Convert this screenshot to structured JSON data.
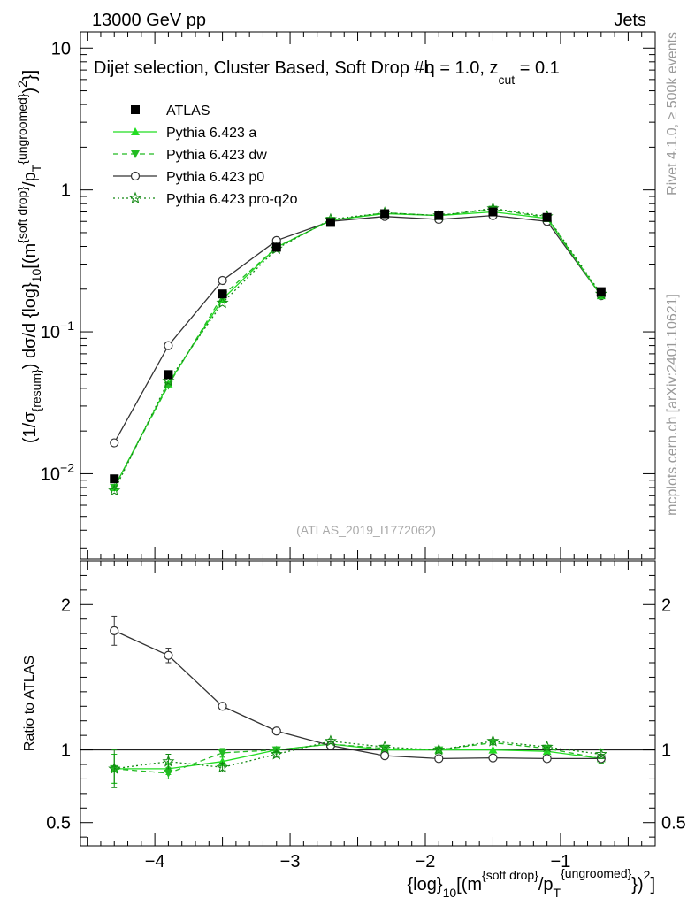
{
  "header": {
    "left": "13000 GeV pp",
    "right": "Jets",
    "side_rivet": "Rivet 4.1.0, ≥ 500k events",
    "side_mcplots": "mcplots.cern.ch [arXiv:2401.10621]",
    "analysis_id": "(ATLAS_2019_I1772062)"
  },
  "colors": {
    "atlas": "#000000",
    "a": "#22dd22",
    "dw": "#22bb22",
    "p0": "#333333",
    "proq2o": "#118811",
    "side_text": "#999999",
    "analysis_text": "#aaaaaa"
  },
  "chart_data": [
    {
      "type": "line",
      "panel": "main",
      "title_parts": {
        "prefix": "Dijet selection, Cluster Based, Soft Drop #b",
        "eta": "η = 1.0, z",
        "cut": "cut",
        "suffix": " = 0.1"
      },
      "ylabel_parts": {
        "a": "(1/σ",
        "b": "{resum}",
        "c": ") dσ/d {log}",
        "d": "10",
        "e": "[(m",
        "f": "{soft drop}",
        "g": "/p",
        "h": "T",
        "i": "{ungroomed}",
        "j": ")",
        "k": "2",
        "l": "}]"
      },
      "yscale": "log",
      "ylim": [
        0.0025,
        13
      ],
      "xlim": [
        -4.55,
        -0.3
      ],
      "y_ticks": [
        {
          "value": 0.01,
          "base": "10",
          "exp": "−2"
        },
        {
          "value": 0.1,
          "base": "10",
          "exp": "−1"
        },
        {
          "value": 1,
          "base": "1",
          "exp": ""
        },
        {
          "value": 10,
          "base": "10",
          "exp": ""
        }
      ],
      "x": [
        -4.3,
        -3.9,
        -3.5,
        -3.1,
        -2.7,
        -2.3,
        -1.9,
        -1.5,
        -1.1,
        -0.7
      ],
      "series": [
        {
          "key": "atlas",
          "name": "ATLAS",
          "marker": "square",
          "line": "none",
          "values": [
            0.0092,
            0.05,
            0.185,
            0.395,
            0.59,
            0.68,
            0.66,
            0.7,
            0.64,
            0.192
          ]
        },
        {
          "key": "a",
          "name": "Pythia 6.423 a",
          "marker": "triangle-up",
          "line": "solid",
          "values": [
            0.008,
            0.043,
            0.17,
            0.395,
            0.61,
            0.68,
            0.66,
            0.7,
            0.63,
            0.18
          ]
        },
        {
          "key": "dw",
          "name": "Pythia 6.423 dw",
          "marker": "triangle-down",
          "line": "dashed",
          "values": [
            0.008,
            0.042,
            0.18,
            0.395,
            0.61,
            0.69,
            0.66,
            0.73,
            0.64,
            0.18
          ]
        },
        {
          "key": "p0",
          "name": "Pythia 6.423 p0",
          "marker": "circle-open",
          "line": "solid",
          "values": [
            0.0165,
            0.08,
            0.23,
            0.44,
            0.6,
            0.65,
            0.62,
            0.66,
            0.6,
            0.18
          ]
        },
        {
          "key": "proq2o",
          "name": "Pythia 6.423 pro-q2o",
          "marker": "star",
          "line": "dotted",
          "values": [
            0.0076,
            0.045,
            0.16,
            0.385,
            0.62,
            0.69,
            0.66,
            0.74,
            0.65,
            0.185
          ]
        }
      ]
    },
    {
      "type": "line",
      "panel": "ratio",
      "ylabel": "Ratio to ATLAS",
      "ylim": [
        0.34,
        2.3
      ],
      "y_ticks": [
        {
          "value": 0.5,
          "label": "0.5"
        },
        {
          "value": 1,
          "label": "1"
        },
        {
          "value": 2,
          "label": "2"
        }
      ],
      "x_ticks": [
        {
          "value": -4,
          "label": "−4"
        },
        {
          "value": -3,
          "label": "−3"
        },
        {
          "value": -2,
          "label": "−2"
        },
        {
          "value": -1,
          "label": "−1"
        }
      ],
      "xlabel_parts": {
        "a": "{log}",
        "b": "10",
        "c": "[(m",
        "d": "{soft drop}",
        "e": "/p",
        "f": "T",
        "g": "{ungroomed}",
        "h": "})",
        "i": "2",
        "j": "]"
      },
      "x": [
        -4.3,
        -3.9,
        -3.5,
        -3.1,
        -2.7,
        -2.3,
        -1.9,
        -1.5,
        -1.1,
        -0.7
      ],
      "series": [
        {
          "key": "a",
          "values": [
            0.87,
            0.87,
            0.92,
            1.0,
            1.04,
            1.0,
            1.0,
            1.0,
            0.99,
            0.94
          ]
        },
        {
          "key": "dw",
          "values": [
            0.87,
            0.84,
            0.98,
            1.0,
            1.04,
            1.01,
            1.0,
            1.05,
            1.01,
            0.94
          ]
        },
        {
          "key": "p0",
          "values": [
            1.82,
            1.65,
            1.3,
            1.13,
            1.03,
            0.96,
            0.94,
            0.945,
            0.94,
            0.94
          ]
        },
        {
          "key": "proq2o",
          "values": [
            0.87,
            0.92,
            0.88,
            0.97,
            1.06,
            1.02,
            1.0,
            1.06,
            1.02,
            0.97
          ]
        }
      ],
      "error_half": {
        "p0": [
          0.1,
          0.05,
          0.02,
          0.015,
          0.01,
          0.01,
          0.01,
          0.01,
          0.01,
          0.02
        ],
        "proq2o": [
          0.13,
          0.05,
          0.03,
          0.02,
          0.015,
          0.01,
          0.01,
          0.01,
          0.01,
          0.03
        ],
        "dw": [
          0.1,
          0.04,
          0.03,
          0.02,
          0.01,
          0.01,
          0.01,
          0.01,
          0.01,
          0.03
        ],
        "a": [
          0.1,
          0.04,
          0.03,
          0.02,
          0.01,
          0.01,
          0.01,
          0.01,
          0.01,
          0.03
        ]
      }
    }
  ]
}
